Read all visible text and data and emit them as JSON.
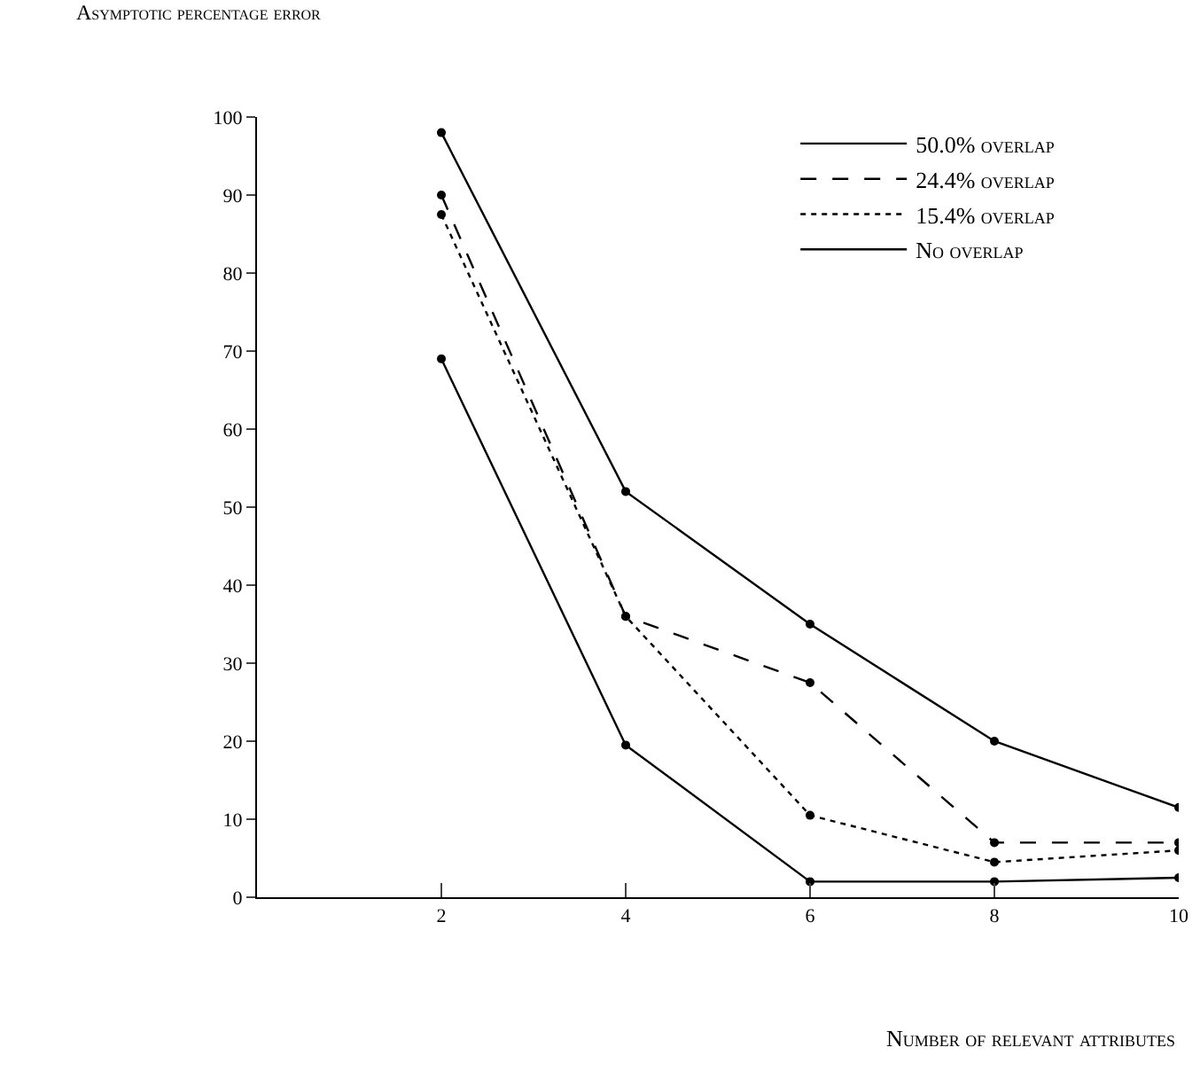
{
  "chart_data": {
    "type": "line",
    "ylabel": "Asymptotic percentage error",
    "xlabel": "Number of relevant attributes",
    "x": [
      2,
      4,
      6,
      8,
      10
    ],
    "xlim": [
      0,
      10
    ],
    "xticks": [
      2,
      4,
      6,
      8,
      10
    ],
    "ylim": [
      0,
      100
    ],
    "yticks": [
      0,
      10,
      20,
      30,
      40,
      50,
      60,
      70,
      80,
      90,
      100
    ],
    "grid": false,
    "legend": "top right",
    "marker": "circle",
    "series": [
      {
        "name": "50.0% overlap",
        "color": "#000000",
        "line_style": "solid",
        "values": [
          98,
          52,
          35,
          20,
          11.5
        ]
      },
      {
        "name": "24.4% overlap",
        "color": "#000000",
        "line_style": "dashed",
        "values": [
          90,
          36,
          27.5,
          7,
          7
        ]
      },
      {
        "name": "15.4% overlap",
        "color": "#000000",
        "line_style": "dotted",
        "values": [
          87.5,
          36,
          10.5,
          4.5,
          6
        ]
      },
      {
        "name": "No overlap",
        "color": "#000000",
        "line_style": "solid",
        "values": [
          69,
          19.5,
          2,
          2,
          2.5
        ]
      }
    ]
  }
}
